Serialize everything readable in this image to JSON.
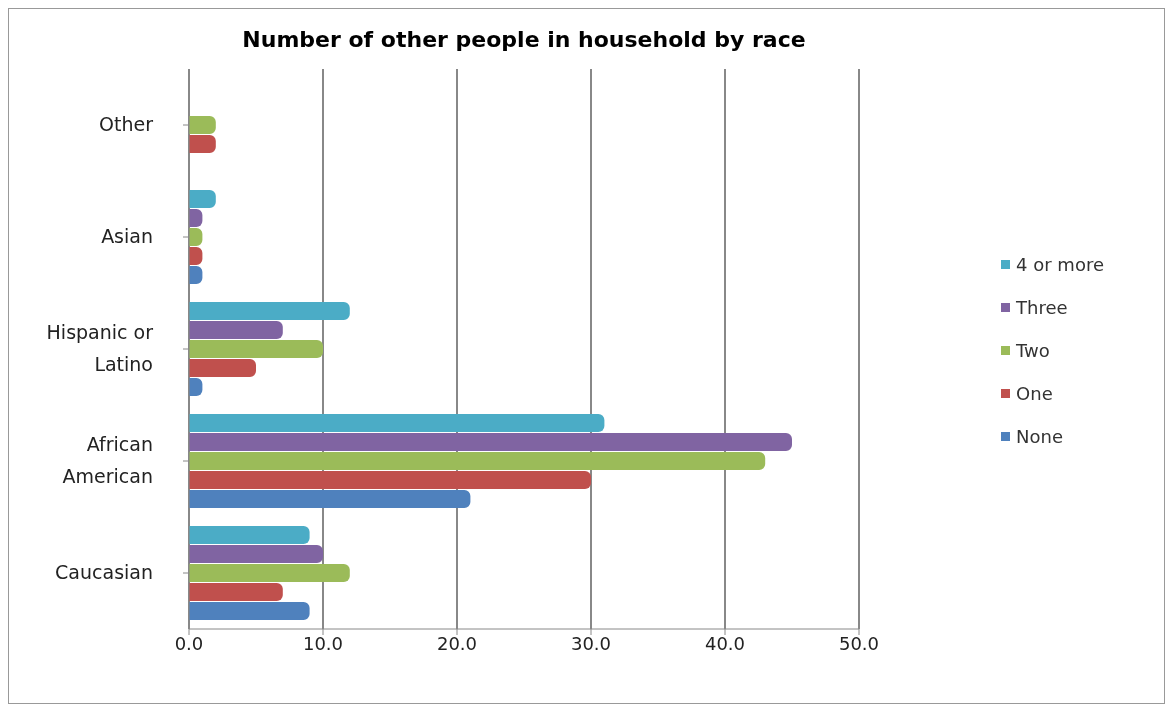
{
  "chart_data": {
    "type": "bar",
    "orientation": "horizontal",
    "title": "Number of other people in household by race",
    "categories": [
      "Other",
      "Asian",
      "Hispanic or Latino",
      "African American",
      "Caucasian"
    ],
    "series": [
      {
        "name": "4 or more",
        "color": "#4bacc6",
        "values": [
          0,
          2,
          12,
          31,
          9
        ]
      },
      {
        "name": "Three",
        "color": "#8064a2",
        "values": [
          0,
          1,
          7,
          45,
          10
        ]
      },
      {
        "name": "Two",
        "color": "#9bbb59",
        "values": [
          2,
          1,
          10,
          43,
          12
        ]
      },
      {
        "name": "One",
        "color": "#c0504d",
        "values": [
          2,
          1,
          5,
          30,
          7
        ]
      },
      {
        "name": "None",
        "color": "#4f81bd",
        "values": [
          0,
          1,
          1,
          21,
          9
        ]
      }
    ],
    "xlim": [
      0,
      50
    ],
    "xticks": [
      {
        "value": 0,
        "label": "0.0"
      },
      {
        "value": 10,
        "label": "10.0"
      },
      {
        "value": 20,
        "label": "20.0"
      },
      {
        "value": 30,
        "label": "30.0"
      },
      {
        "value": 40,
        "label": "40.0"
      },
      {
        "value": 50,
        "label": "50.0"
      }
    ],
    "grid": "x",
    "legend": "right"
  }
}
